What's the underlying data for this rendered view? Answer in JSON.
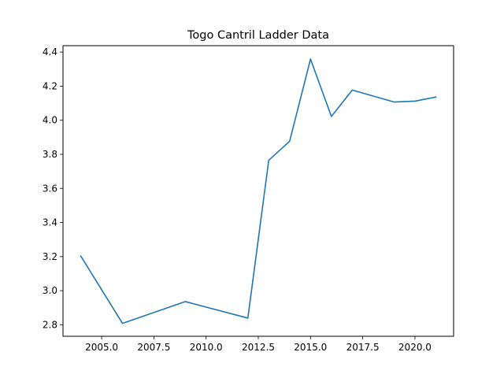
{
  "chart_data": {
    "type": "line",
    "title": "Togo Cantril Ladder Data",
    "xlabel": "",
    "ylabel": "",
    "xlim": [
      2003.15,
      2021.85
    ],
    "ylim": [
      2.7325,
      4.4375
    ],
    "x_ticks": [
      2005.0,
      2007.5,
      2010.0,
      2012.5,
      2015.0,
      2017.5,
      2020.0
    ],
    "x_tick_labels": [
      "2005.0",
      "2007.5",
      "2010.0",
      "2012.5",
      "2015.0",
      "2017.5",
      "2020.0"
    ],
    "y_ticks": [
      2.8,
      3.0,
      3.2,
      3.4,
      3.6,
      3.8,
      4.0,
      4.2,
      4.4
    ],
    "y_tick_labels": [
      "2.8",
      "3.0",
      "3.2",
      "3.4",
      "3.6",
      "3.8",
      "4.0",
      "4.2",
      "4.4"
    ],
    "grid": false,
    "legend": "none",
    "color": "#1f77b4",
    "series": [
      {
        "x": [
          2004,
          2006,
          2009,
          2012,
          2013,
          2014,
          2015,
          2016,
          2017,
          2019,
          2020,
          2021
        ],
        "y": [
          3.203,
          2.808,
          2.936,
          2.839,
          3.765,
          3.877,
          4.359,
          4.022,
          4.177,
          4.107,
          4.112,
          4.136
        ]
      }
    ]
  }
}
